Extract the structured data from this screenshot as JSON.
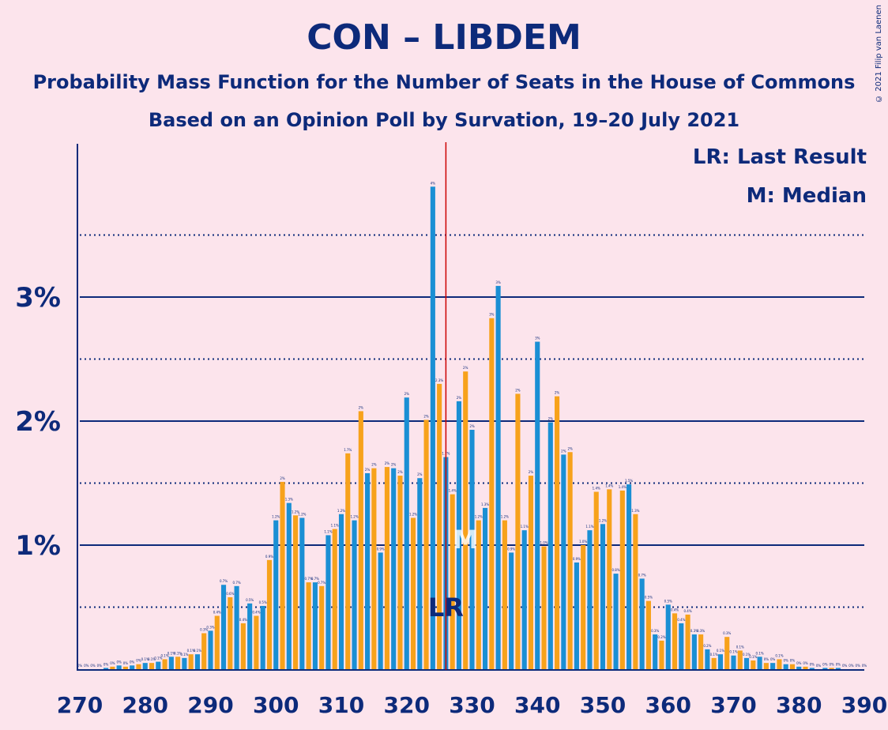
{
  "title": "CON – LIBDEM",
  "subtitle1": "Probability Mass Function for the Number of Seats in the House of Commons",
  "subtitle2": "Based on an Opinion Poll by Survation, 19–20 July 2021",
  "copyright": "© 2021 Filip van Laenen",
  "legend": {
    "lr": "LR: Last Result",
    "median": "M: Median"
  },
  "annotations": {
    "lr_label": "LR",
    "median_label": "M"
  },
  "colors": {
    "blue": "#1a8fd4",
    "orange": "#f7a21b",
    "navy": "#0d2a7a",
    "red": "#cc0000",
    "background": "#fce4ec"
  },
  "chart_data": {
    "type": "bar",
    "xlim": [
      270,
      390
    ],
    "ylim": [
      0,
      4.2
    ],
    "x_ticks": [
      "270",
      "280",
      "290",
      "300",
      "310",
      "320",
      "330",
      "340",
      "350",
      "360",
      "370",
      "380",
      "390"
    ],
    "y_ticks": [
      "1%",
      "2%",
      "3%"
    ],
    "y_tick_values": [
      1,
      2,
      3
    ],
    "minor_gridlines": [
      0.5,
      1.5,
      2.5,
      3.5
    ],
    "last_result": 326,
    "median": 329,
    "x": [
      270,
      271,
      272,
      273,
      274,
      275,
      276,
      277,
      278,
      279,
      280,
      281,
      282,
      283,
      284,
      285,
      286,
      287,
      288,
      289,
      290,
      291,
      292,
      293,
      294,
      295,
      296,
      297,
      298,
      299,
      300,
      301,
      302,
      303,
      304,
      305,
      306,
      307,
      308,
      309,
      310,
      311,
      312,
      313,
      314,
      315,
      316,
      317,
      318,
      319,
      320,
      321,
      322,
      323,
      324,
      325,
      326,
      327,
      328,
      329,
      330,
      331,
      332,
      333,
      334,
      335,
      336,
      337,
      338,
      339,
      340,
      341,
      342,
      343,
      344,
      345,
      346,
      347,
      348,
      349,
      350,
      351,
      352,
      353,
      354,
      355,
      356,
      357,
      358,
      359,
      360,
      361,
      362,
      363,
      364,
      365,
      366,
      367,
      368,
      369,
      370,
      371,
      372,
      373,
      374,
      375,
      376,
      377,
      378,
      379,
      380,
      381,
      382,
      383,
      384,
      385,
      386,
      387,
      388,
      389,
      390
    ],
    "values": [
      0,
      0,
      0,
      0,
      0.01,
      0.02,
      0.03,
      0.02,
      0.03,
      0.04,
      0.05,
      0.05,
      0.06,
      0.08,
      0.1,
      0.1,
      0.09,
      0.12,
      0.12,
      0.29,
      0.31,
      0.43,
      0.68,
      0.58,
      0.67,
      0.37,
      0.53,
      0.43,
      0.51,
      0.88,
      1.2,
      1.51,
      1.34,
      1.24,
      1.22,
      0.7,
      0.7,
      0.67,
      1.08,
      1.13,
      1.25,
      1.74,
      1.2,
      2.08,
      1.58,
      1.62,
      0.94,
      1.63,
      1.62,
      1.56,
      2.19,
      1.22,
      1.54,
      2.01,
      3.89,
      2.3,
      1.71,
      1.41,
      2.16,
      2.4,
      1.93,
      1.2,
      1.3,
      2.83,
      3.09,
      1.2,
      0.94,
      2.22,
      1.12,
      1.56,
      2.64,
      0.99,
      1.99,
      2.2,
      1.73,
      1.75,
      0.86,
      1,
      1.12,
      1.43,
      1.17,
      1.45,
      0.77,
      1.44,
      1.49,
      1.25,
      0.73,
      0.55,
      0.28,
      0.23,
      0.52,
      0.45,
      0.37,
      0.44,
      0.28,
      0.28,
      0.16,
      0.09,
      0.12,
      0.26,
      0.11,
      0.15,
      0.09,
      0.07,
      0.1,
      0.05,
      0.05,
      0.08,
      0.04,
      0.04,
      0.02,
      0.02,
      0.01,
      0,
      0.01,
      0.01,
      0.01,
      0,
      0,
      0,
      0
    ],
    "labels": [
      "0%",
      "0%",
      "0%",
      "0%",
      "0%",
      "0%",
      "0%",
      "0%",
      "0%",
      "0%",
      "0.1%",
      "0.1%",
      "0.1%",
      "0.1%",
      "0.1%",
      "0.1%",
      "0.1%",
      "0.1%",
      "0.1%",
      "0.3%",
      "0.3%",
      "0.4%",
      "0.7%",
      "0.6%",
      "0.7%",
      "0.4%",
      "0.5%",
      "0.4%",
      "0.5%",
      "0.9%",
      "1.2%",
      "2%",
      "1.3%",
      "1.2%",
      "1.2%",
      "0.7%",
      "0.7%",
      "0.7%",
      "1.1%",
      "1.1%",
      "1.2%",
      "1.7%",
      "1.2%",
      "2%",
      "2%",
      "2%",
      "0.9%",
      "2%",
      "2%",
      "2%",
      "2%",
      "1.2%",
      "2%",
      "2%",
      "4%",
      "2.3%",
      "1.7%",
      "1.4%",
      "2%",
      "2%",
      "2%",
      "1.2%",
      "1.3%",
      "3%",
      "3%",
      "1.2%",
      "0.9%",
      "2%",
      "1.1%",
      "2%",
      "3%",
      "1.0%",
      "2%",
      "2%",
      "2%",
      "2%",
      "0.9%",
      "1.0%",
      "1.1%",
      "1.4%",
      "1.2%",
      "1.4%",
      "0.8%",
      "1.4%",
      "1.5%",
      "1.3%",
      "0.7%",
      "0.5%",
      "0.3%",
      "0.2%",
      "0.5%",
      "0.4%",
      "0.4%",
      "0.4%",
      "0.3%",
      "0.3%",
      "0.2%",
      "0.1%",
      "0.1%",
      "0.3%",
      "0.1%",
      "0.1%",
      "0.1%",
      "0.1%",
      "0.1%",
      "0%",
      "0%",
      "0.1%",
      "0%",
      "0%",
      "0%",
      "0%",
      "0%",
      "0%",
      "0%",
      "0%",
      "0%",
      "0%",
      "0%",
      "0%",
      "0%"
    ]
  }
}
